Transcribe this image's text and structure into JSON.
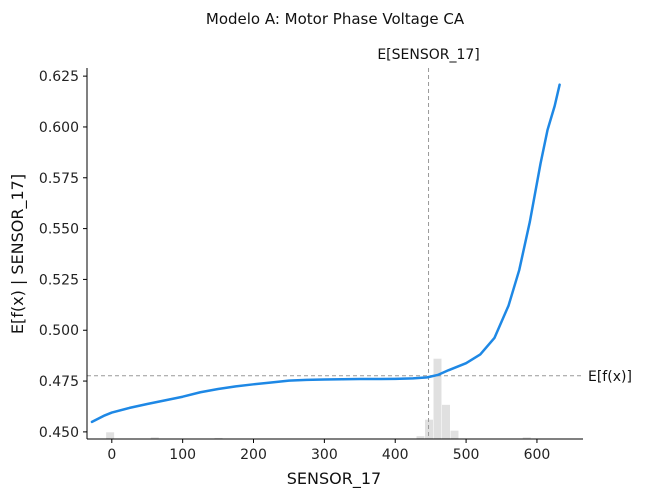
{
  "chart_data": {
    "type": "line",
    "title": "Modelo A: Motor Phase Voltage CA",
    "xlabel": "SENSOR_17",
    "ylabel": "E[f(x) | SENSOR_17]",
    "xlim": [
      -35,
      665
    ],
    "ylim": [
      0.4465,
      0.629
    ],
    "xticks": [
      0,
      100,
      200,
      300,
      400,
      500,
      600
    ],
    "yticks": [
      0.45,
      0.475,
      0.5,
      0.525,
      0.55,
      0.575,
      0.6,
      0.625
    ],
    "ytick_labels": [
      "0.450",
      "0.475",
      "0.500",
      "0.525",
      "0.550",
      "0.575",
      "0.600",
      "0.625"
    ],
    "series": [
      {
        "color": "#1e88e5",
        "x": [
          -28,
          -10,
          0,
          25,
          50,
          75,
          100,
          125,
          150,
          175,
          200,
          225,
          250,
          275,
          300,
          325,
          350,
          375,
          400,
          425,
          445,
          460,
          475,
          500,
          520,
          540,
          560,
          575,
          590,
          605,
          615,
          625,
          632
        ],
        "y": [
          0.4549,
          0.4581,
          0.4595,
          0.4618,
          0.4637,
          0.4655,
          0.4673,
          0.4695,
          0.4711,
          0.4724,
          0.4734,
          0.4743,
          0.4752,
          0.4756,
          0.4758,
          0.4759,
          0.476,
          0.476,
          0.4761,
          0.4763,
          0.4768,
          0.478,
          0.4803,
          0.4838,
          0.4881,
          0.4962,
          0.5122,
          0.5296,
          0.5534,
          0.5819,
          0.5986,
          0.6103,
          0.6208
        ]
      }
    ],
    "reference_lines": {
      "x_value": 447,
      "x_label": "E[SENSOR_17]",
      "y_value": 0.4776,
      "y_label": "E[f(x)]",
      "color": "#999999"
    },
    "histogram": {
      "color": "#e0e0e0",
      "bin_width": 12,
      "bins_x": [
        -8,
        55,
        145,
        430,
        442,
        454,
        466,
        478,
        580
      ],
      "heights": [
        0.0033,
        0.0008,
        0.0005,
        0.0014,
        0.0095,
        0.0395,
        0.0168,
        0.0041,
        0.0008
      ]
    },
    "grid": false,
    "legend": "none"
  }
}
